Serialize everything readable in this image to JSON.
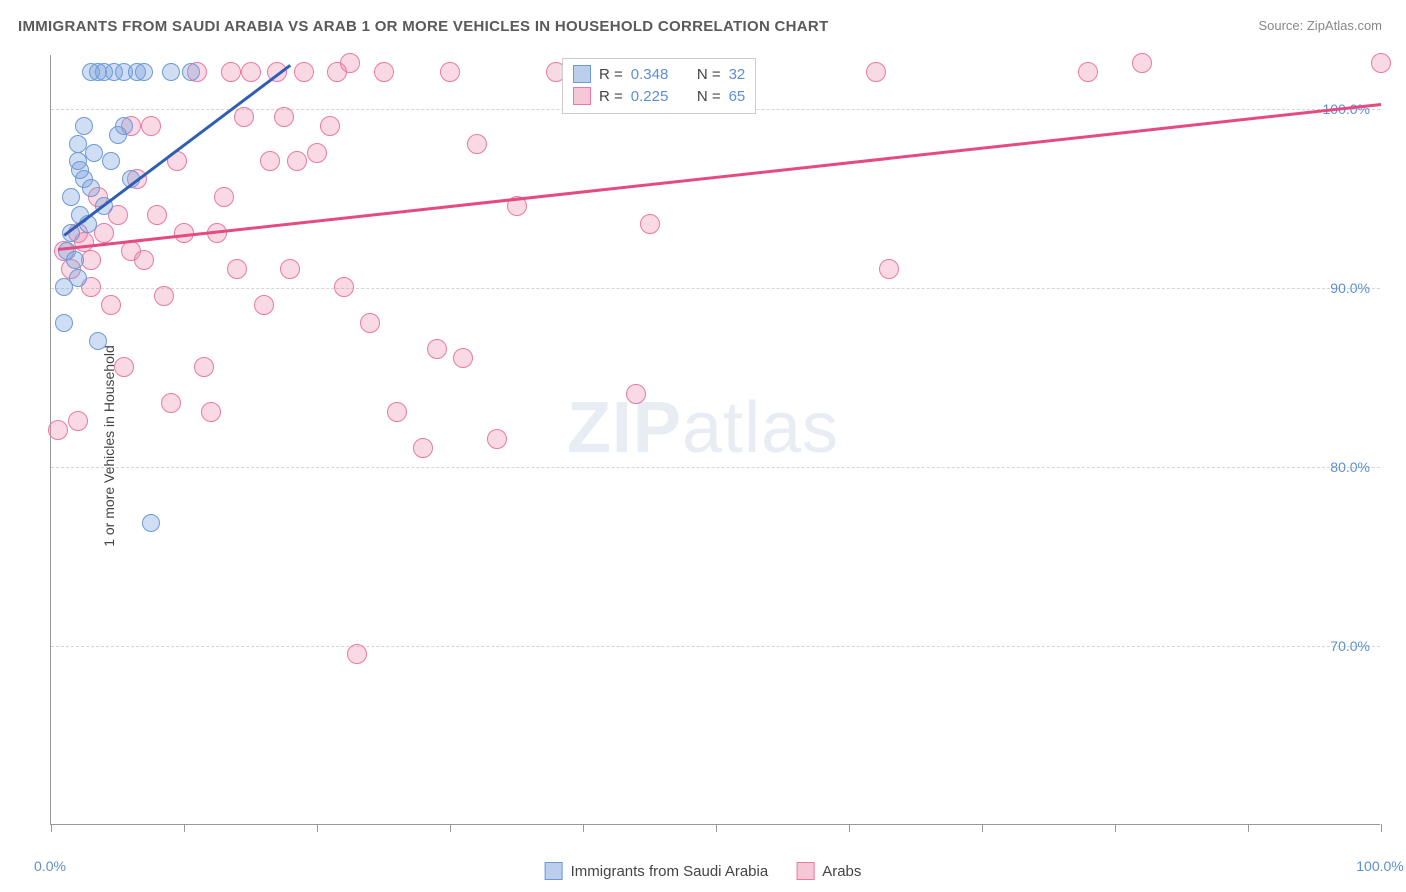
{
  "title": "IMMIGRANTS FROM SAUDI ARABIA VS ARAB 1 OR MORE VEHICLES IN HOUSEHOLD CORRELATION CHART",
  "source": "Source: ZipAtlas.com",
  "y_axis_label": "1 or more Vehicles in Household",
  "watermark_zip": "ZIP",
  "watermark_atlas": "atlas",
  "chart": {
    "type": "scatter",
    "xlim": [
      0,
      100
    ],
    "ylim": [
      60,
      103
    ],
    "x_ticks": [
      0,
      10,
      20,
      30,
      40,
      50,
      60,
      70,
      80,
      90,
      100
    ],
    "x_tick_labels": {
      "0": "0.0%",
      "100": "100.0%"
    },
    "y_ticks": [
      70,
      80,
      90,
      100
    ],
    "y_tick_labels": {
      "70": "70.0%",
      "80": "80.0%",
      "90": "90.0%",
      "100": "100.0%"
    },
    "grid_color": "#d5d5d5",
    "background_color": "#ffffff",
    "series": [
      {
        "name": "Immigrants from Saudi Arabia",
        "color_fill": "rgba(120,160,220,0.35)",
        "color_stroke": "#6d9ad6",
        "marker_radius": 9,
        "R": "0.348",
        "N": "32",
        "trend": {
          "x1": 1,
          "y1": 93,
          "x2": 18,
          "y2": 102.5,
          "color": "#2f5fb5",
          "width": 2.5
        },
        "points": [
          [
            1,
            88
          ],
          [
            1.2,
            92
          ],
          [
            1.5,
            93
          ],
          [
            1.5,
            95
          ],
          [
            2,
            97
          ],
          [
            2,
            98
          ],
          [
            2.2,
            94
          ],
          [
            2.5,
            96
          ],
          [
            2.5,
            99
          ],
          [
            2.8,
            93.5
          ],
          [
            3,
            102
          ],
          [
            3.2,
            97.5
          ],
          [
            3.5,
            102
          ],
          [
            3.5,
            87
          ],
          [
            4,
            94.5
          ],
          [
            4.5,
            97
          ],
          [
            4.7,
            102
          ],
          [
            5,
            98.5
          ],
          [
            5.5,
            102
          ],
          [
            5.5,
            99
          ],
          [
            6,
            96
          ],
          [
            6.5,
            102
          ],
          [
            7,
            102
          ],
          [
            7.5,
            76.8
          ],
          [
            9,
            102
          ],
          [
            10.5,
            102
          ],
          [
            2,
            90.5
          ],
          [
            1.8,
            91.5
          ],
          [
            4,
            102
          ],
          [
            2.2,
            96.5
          ],
          [
            3,
            95.5
          ],
          [
            1,
            90
          ]
        ]
      },
      {
        "name": "Arabs",
        "color_fill": "rgba(235,130,165,0.30)",
        "color_stroke": "#e87aa3",
        "marker_radius": 10,
        "R": "0.225",
        "N": "65",
        "trend": {
          "x1": 0.5,
          "y1": 92.2,
          "x2": 100,
          "y2": 100.3,
          "color": "#e34b82",
          "width": 2.5
        },
        "points": [
          [
            0.5,
            82
          ],
          [
            1,
            92
          ],
          [
            1.5,
            91
          ],
          [
            2,
            93
          ],
          [
            2.5,
            92.5
          ],
          [
            3,
            91.5
          ],
          [
            3.5,
            95
          ],
          [
            4,
            93
          ],
          [
            5,
            94
          ],
          [
            5.5,
            85.5
          ],
          [
            6,
            92
          ],
          [
            6.5,
            96
          ],
          [
            7,
            91.5
          ],
          [
            7.5,
            99
          ],
          [
            8,
            94
          ],
          [
            8.5,
            89.5
          ],
          [
            9,
            83.5
          ],
          [
            9.5,
            97
          ],
          [
            10,
            93
          ],
          [
            11,
            102
          ],
          [
            11.5,
            85.5
          ],
          [
            12,
            83
          ],
          [
            12.5,
            93
          ],
          [
            13,
            95
          ],
          [
            13.5,
            102
          ],
          [
            14,
            91
          ],
          [
            15,
            102
          ],
          [
            16,
            89
          ],
          [
            16.5,
            97
          ],
          [
            17,
            102
          ],
          [
            17.5,
            99.5
          ],
          [
            18,
            91
          ],
          [
            18.5,
            97
          ],
          [
            19,
            102
          ],
          [
            20,
            97.5
          ],
          [
            21,
            99
          ],
          [
            21.5,
            102
          ],
          [
            22,
            90
          ],
          [
            22.5,
            102.5
          ],
          [
            23,
            69.5
          ],
          [
            24,
            88
          ],
          [
            25,
            102
          ],
          [
            26,
            83
          ],
          [
            28,
            81
          ],
          [
            29,
            86.5
          ],
          [
            30,
            102
          ],
          [
            31,
            86
          ],
          [
            32,
            98
          ],
          [
            33.5,
            81.5
          ],
          [
            35,
            94.5
          ],
          [
            38,
            102
          ],
          [
            40,
            102
          ],
          [
            44,
            84
          ],
          [
            45,
            93.5
          ],
          [
            47,
            102
          ],
          [
            62,
            102
          ],
          [
            63,
            91
          ],
          [
            78,
            102
          ],
          [
            82,
            102.5
          ],
          [
            100,
            102.5
          ],
          [
            2,
            82.5
          ],
          [
            3,
            90
          ],
          [
            4.5,
            89
          ],
          [
            6,
            99
          ],
          [
            14.5,
            99.5
          ]
        ]
      }
    ],
    "legend_swatch_blue": {
      "fill": "rgba(120,160,220,0.5)",
      "stroke": "#6d9ad6"
    },
    "legend_swatch_pink": {
      "fill": "rgba(235,130,165,0.45)",
      "stroke": "#e87aa3"
    },
    "stats_labels": {
      "R": "R =",
      "N": "N ="
    }
  }
}
